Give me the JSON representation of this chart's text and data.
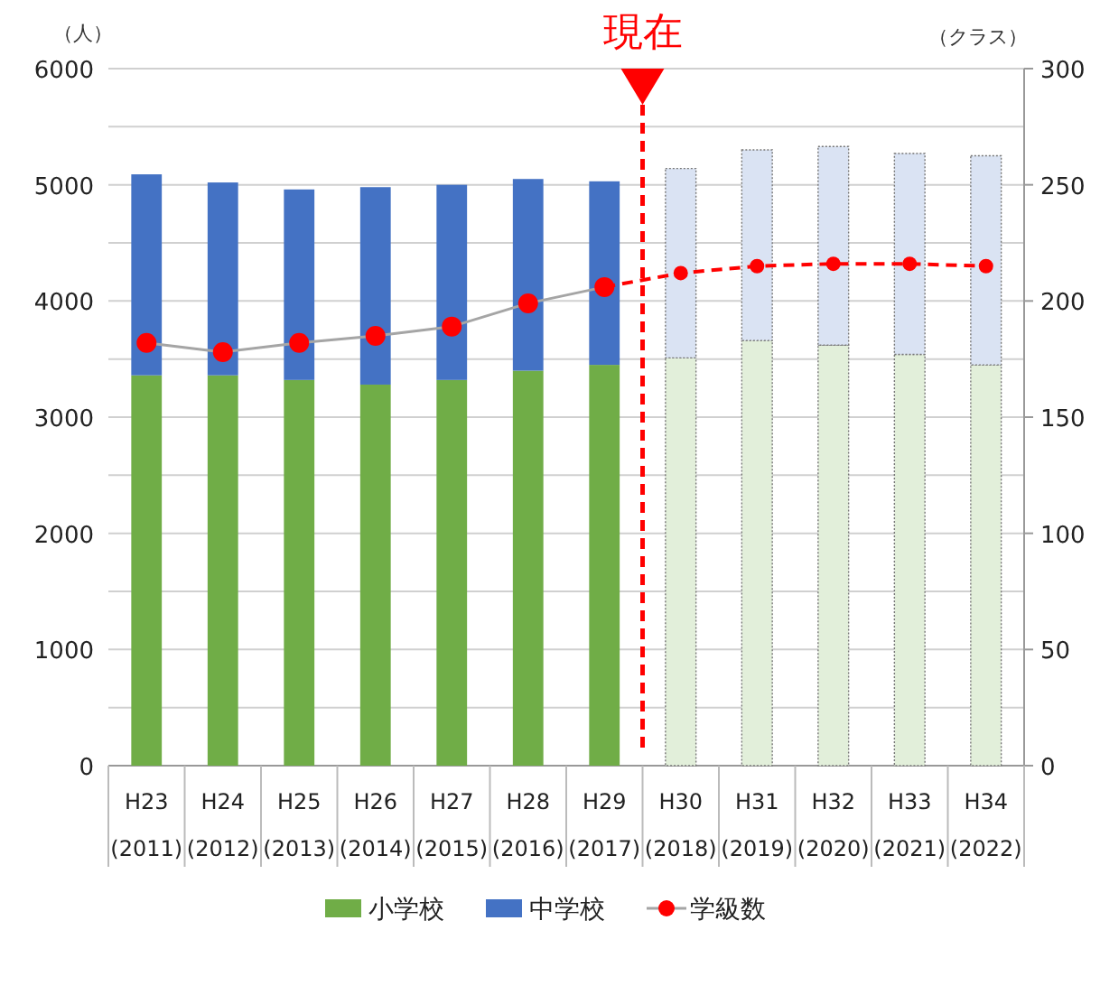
{
  "chart_data": {
    "type": "bar",
    "stacked": true,
    "ylabel": "（人）",
    "y2label": "（クラス）",
    "annotations": [
      "現在"
    ],
    "categories": [
      "H23\n(2011)",
      "H24\n(2012)",
      "H25\n(2013)",
      "H26\n(2014)",
      "H27\n(2015)",
      "H28\n(2016)",
      "H29\n(2017)",
      "H30\n(2018)",
      "H31\n(2019)",
      "H32\n(2020)",
      "H33\n(2021)",
      "H34\n(2022)"
    ],
    "series": [
      {
        "name": "小学校",
        "color": "#70ad47",
        "colors": [
          "#70ad47",
          "#70ad47",
          "#70ad47",
          "#70ad47",
          "#70ad47",
          "#70ad47",
          "#70ad47",
          "#e2efda",
          "#e2efda",
          "#e2efda",
          "#e2efda",
          "#e2efda"
        ],
        "values": [
          3360,
          3360,
          3320,
          3280,
          3320,
          3400,
          3450,
          3510,
          3660,
          3620,
          3540,
          3450
        ]
      },
      {
        "name": "中学校",
        "color": "#4472c4",
        "colors": [
          "#4472c4",
          "#4472c4",
          "#4472c4",
          "#4472c4",
          "#4472c4",
          "#4472c4",
          "#4472c4",
          "#dae3f3",
          "#dae3f3",
          "#dae3f3",
          "#dae3f3",
          "#dae3f3"
        ],
        "values": [
          1730,
          1660,
          1640,
          1700,
          1680,
          1650,
          1580,
          1630,
          1640,
          1710,
          1730,
          1800
        ]
      },
      {
        "name": "学級数",
        "type": "line",
        "axis": "y2",
        "color": "#a5a5a5",
        "colors": [
          "#ff0000",
          "#ff0000",
          "#ff0000",
          "#ff0000",
          "#ff0000",
          "#ff0000",
          "#ff0000",
          null,
          null,
          null,
          null,
          null
        ],
        "line_style": "solid",
        "values": [
          182,
          178,
          182,
          185,
          189,
          199,
          206,
          null,
          null,
          null,
          null,
          null
        ]
      },
      {
        "type": "line",
        "axis": "y2",
        "color": "#ff0000",
        "line_style": "dashed",
        "values": [
          null,
          null,
          null,
          null,
          null,
          null,
          206,
          212,
          215,
          216,
          216,
          215
        ]
      }
    ],
    "ylim": [
      0,
      6000
    ],
    "yticks": [
      0,
      {
        "value": 500,
        "label": null
      },
      1000,
      {
        "value": 1500,
        "label": null
      },
      2000,
      {
        "value": 2500,
        "label": null
      },
      3000,
      {
        "value": 3500,
        "label": null
      },
      4000,
      {
        "value": 4500,
        "label": null
      },
      5000,
      {
        "value": 5500,
        "label": null
      },
      6000
    ],
    "y2lim": [
      0,
      300
    ],
    "y2ticks": [
      0,
      50,
      100,
      150,
      200,
      250,
      300
    ],
    "grid": "y",
    "legend": "bottom",
    "marker": "circle"
  }
}
